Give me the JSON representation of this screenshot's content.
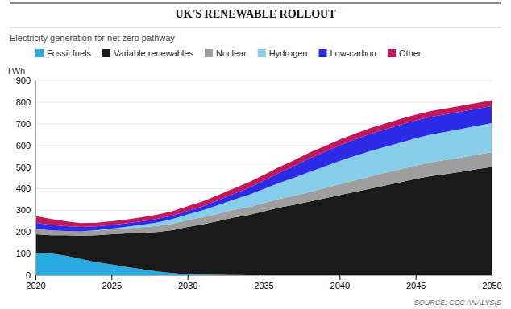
{
  "chart_data": {
    "type": "area",
    "stacked": true,
    "title": "UK'S RENEWABLE ROLLOUT",
    "subtitle": "Electricity generation for net zero pathway",
    "annotations": [
      "SOURCE: CCC ANALYSIS"
    ],
    "ylabel": "TWh",
    "x": [
      2020,
      2021,
      2022,
      2023,
      2024,
      2025,
      2026,
      2027,
      2028,
      2029,
      2030,
      2031,
      2032,
      2033,
      2034,
      2035,
      2036,
      2037,
      2038,
      2039,
      2040,
      2041,
      2042,
      2043,
      2044,
      2045,
      2046,
      2047,
      2048,
      2049,
      2050
    ],
    "series": [
      {
        "name": "Fossil fuels",
        "color": "#29ABE2",
        "values": [
          105,
          100,
          90,
          75,
          60,
          50,
          38,
          28,
          18,
          10,
          5,
          3,
          2,
          1,
          0,
          0,
          0,
          0,
          0,
          0,
          0,
          0,
          0,
          0,
          0,
          0,
          0,
          0,
          0,
          0,
          0
        ]
      },
      {
        "name": "Variable renewables",
        "color": "#1A1A1A",
        "values": [
          85,
          85,
          95,
          108,
          125,
          140,
          155,
          168,
          182,
          198,
          218,
          232,
          248,
          265,
          278,
          295,
          312,
          325,
          340,
          355,
          370,
          385,
          400,
          415,
          430,
          445,
          458,
          468,
          478,
          490,
          500
        ]
      },
      {
        "name": "Nuclear",
        "color": "#9E9E9E",
        "values": [
          25,
          22,
          20,
          20,
          21,
          22,
          24,
          26,
          28,
          30,
          32,
          33,
          34,
          35,
          36,
          38,
          40,
          42,
          44,
          47,
          50,
          53,
          56,
          58,
          60,
          62,
          64,
          65,
          66,
          67,
          68
        ]
      },
      {
        "name": "Hydrogen",
        "color": "#87CEEB",
        "values": [
          0,
          0,
          0,
          0,
          2,
          4,
          7,
          11,
          16,
          21,
          26,
          32,
          40,
          48,
          57,
          65,
          74,
          83,
          93,
          100,
          108,
          113,
          118,
          120,
          123,
          126,
          128,
          130,
          132,
          133,
          135
        ]
      },
      {
        "name": "Low-carbon",
        "color": "#2B2BE8",
        "values": [
          28,
          25,
          22,
          20,
          18,
          16,
          16,
          16,
          16,
          16,
          16,
          18,
          22,
          26,
          32,
          38,
          46,
          54,
          62,
          67,
          72,
          76,
          79,
          81,
          82,
          82,
          82,
          81,
          80,
          79,
          78
        ]
      },
      {
        "name": "Other",
        "color": "#C2185B",
        "values": [
          30,
          28,
          22,
          18,
          17,
          17,
          18,
          19,
          20,
          21,
          22,
          23,
          24,
          25,
          26,
          27,
          27,
          27,
          27,
          27,
          27,
          27,
          27,
          27,
          27,
          27,
          27,
          27,
          27,
          27,
          27
        ]
      }
    ],
    "xlim": [
      2020,
      2050
    ],
    "xticks": [
      2020,
      2025,
      2030,
      2035,
      2040,
      2045,
      2050
    ],
    "ylim": [
      0,
      900
    ],
    "yticks": [
      0,
      100,
      200,
      300,
      400,
      500,
      600,
      700,
      800,
      900
    ],
    "grid": true,
    "legend": "top"
  }
}
